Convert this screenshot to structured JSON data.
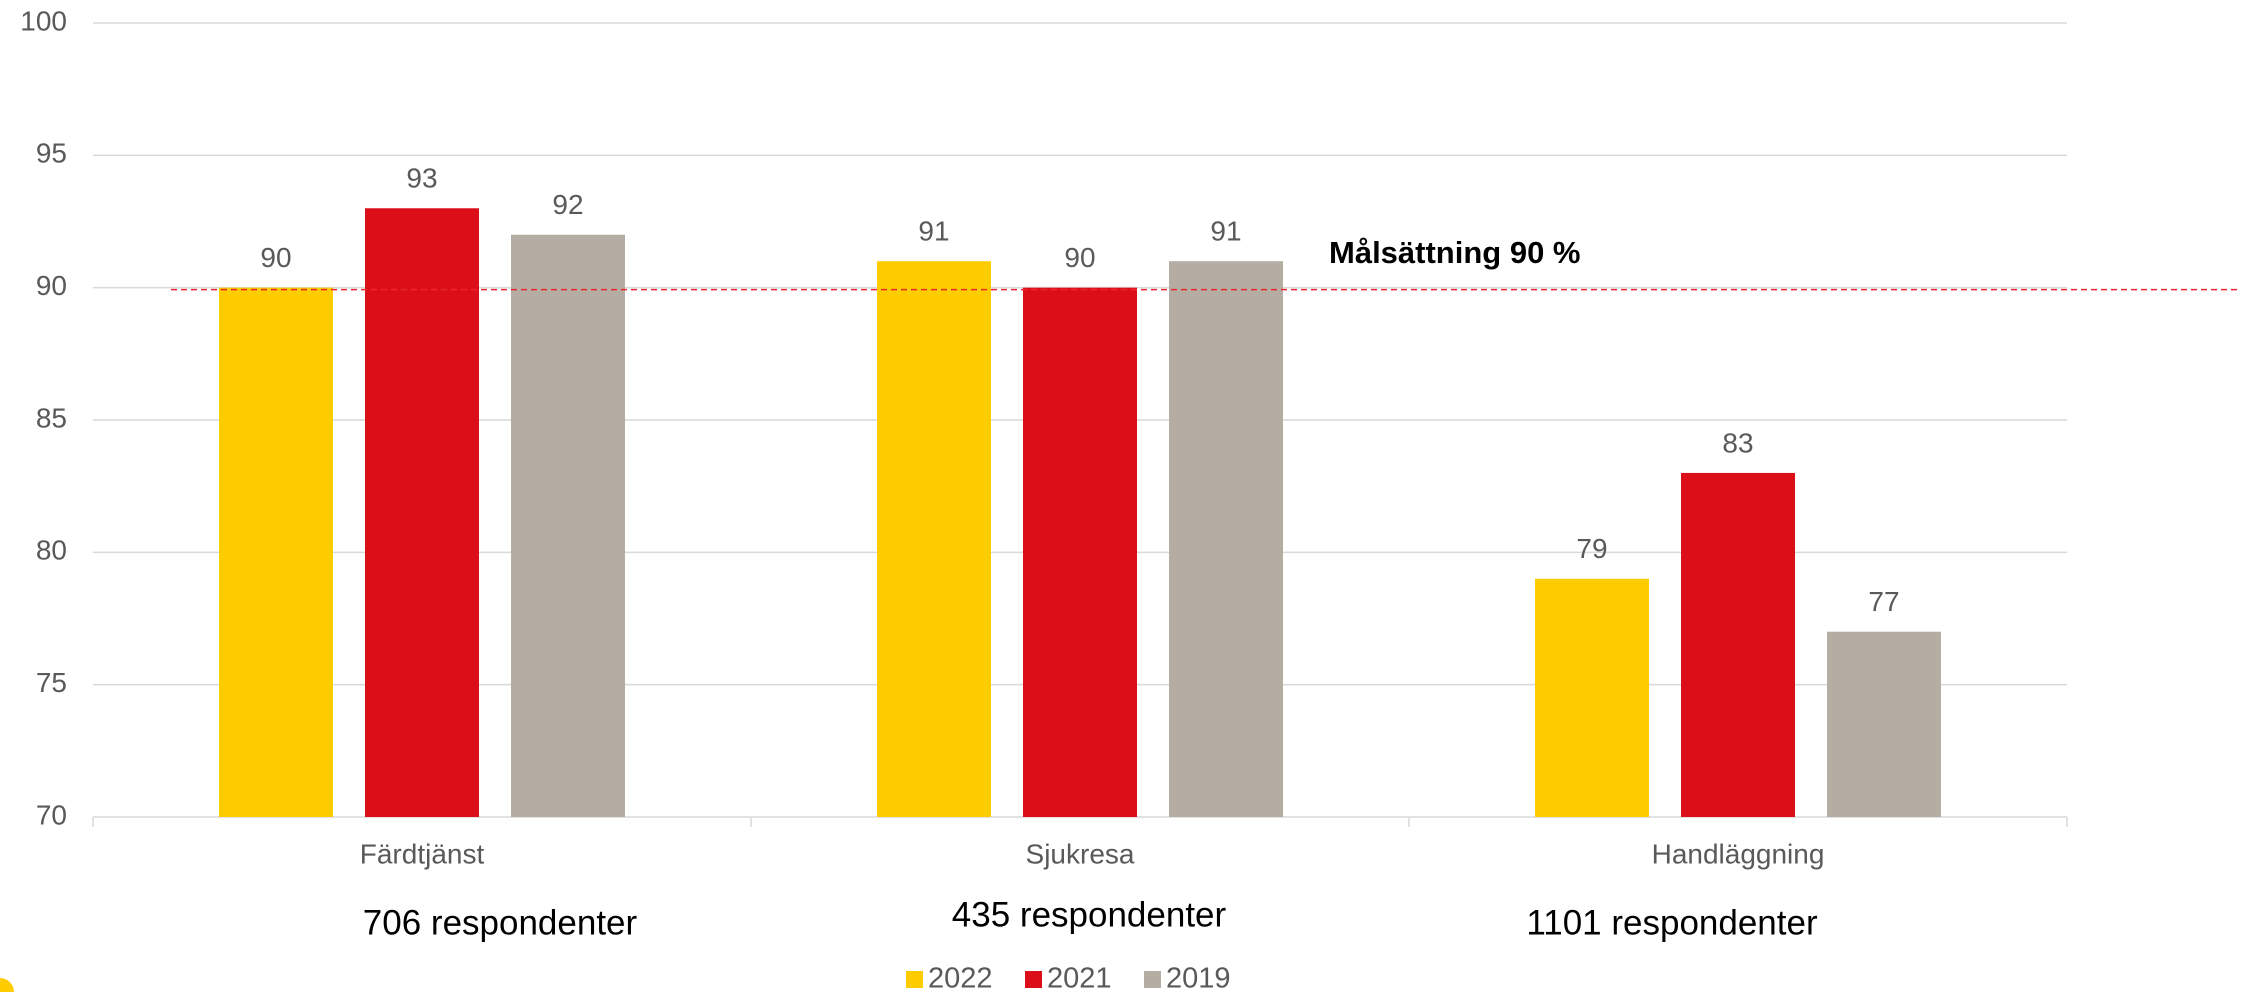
{
  "chart_data": {
    "type": "bar",
    "categories": [
      "Färdtjänst",
      "Sjukresa",
      "Handläggning"
    ],
    "series": [
      {
        "name": "2022",
        "color": "#ffcc00",
        "values": [
          90,
          91,
          79
        ]
      },
      {
        "name": "2021",
        "color": "#dc0f19",
        "values": [
          93,
          90,
          83
        ]
      },
      {
        "name": "2019",
        "color": "#b5aca3",
        "values": [
          92,
          91,
          77
        ]
      }
    ],
    "ylim": [
      70,
      100
    ],
    "yticks": [
      70,
      75,
      80,
      85,
      90,
      95,
      100
    ],
    "grid": true,
    "target": {
      "value": 90,
      "label": "Målsättning 90 %",
      "color": "#e8262b"
    },
    "annotations": [
      "706 respondenter",
      "435 respondenter",
      "1101 respondenter"
    ],
    "legend": "bottom"
  }
}
